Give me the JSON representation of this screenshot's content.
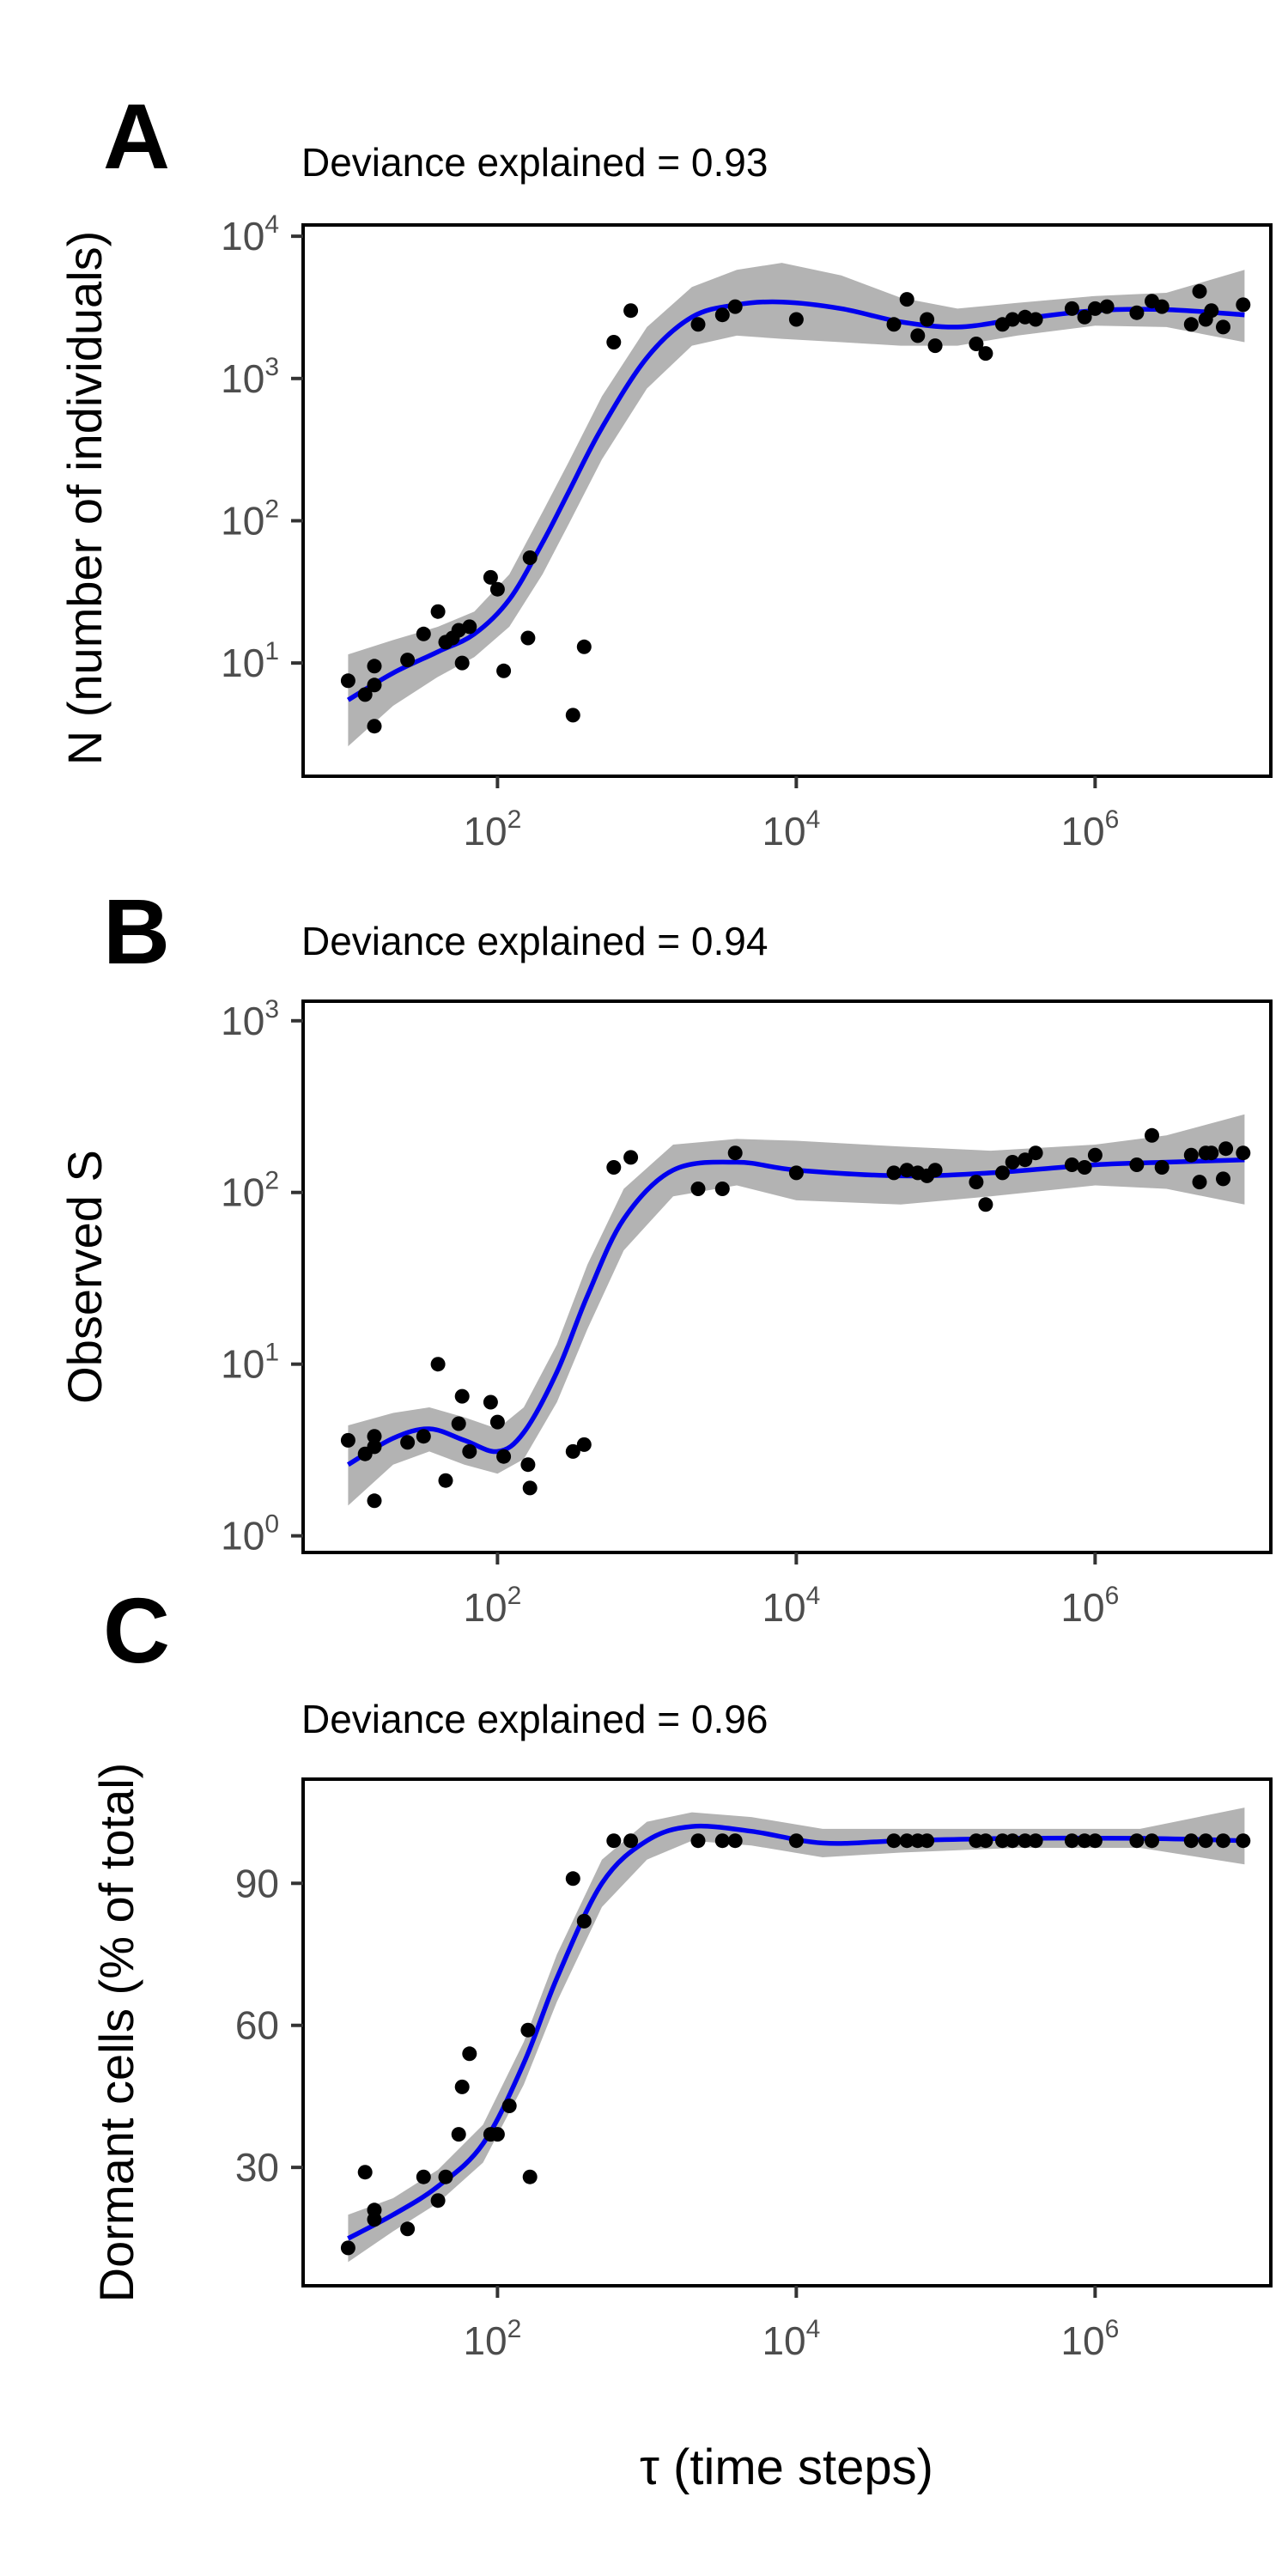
{
  "x_axis_label": "τ (time steps)",
  "chart_data": [
    {
      "type": "scatter",
      "panel": "A",
      "annotation": "Deviance explained = 0.93",
      "ylabel": "N (number of individuals)",
      "xlabel": "τ (time steps)",
      "xscale": "log",
      "yscale": "log",
      "xlim": [
        5,
        15000000
      ],
      "ylim": [
        1.6,
        12000
      ],
      "x_ticks": [
        {
          "value": 100,
          "base": "10",
          "exp": "2"
        },
        {
          "value": 10000,
          "base": "10",
          "exp": "4"
        },
        {
          "value": 1000000,
          "base": "10",
          "exp": "6"
        }
      ],
      "y_ticks": [
        {
          "value": 10,
          "base": "10",
          "exp": "1"
        },
        {
          "value": 100,
          "base": "10",
          "exp": "2"
        },
        {
          "value": 1000,
          "base": "10",
          "exp": "3"
        },
        {
          "value": 10000,
          "base": "10",
          "exp": "4"
        }
      ],
      "fit_color": "#0000ee",
      "band_color": "#b3b3b3",
      "point_color": "#000000",
      "points": [
        {
          "x": 10,
          "y": 7.5
        },
        {
          "x": 13,
          "y": 6
        },
        {
          "x": 15,
          "y": 9.5
        },
        {
          "x": 15,
          "y": 7
        },
        {
          "x": 15,
          "y": 3.6
        },
        {
          "x": 25,
          "y": 10.5
        },
        {
          "x": 32,
          "y": 16
        },
        {
          "x": 40,
          "y": 23
        },
        {
          "x": 45,
          "y": 14
        },
        {
          "x": 50,
          "y": 15
        },
        {
          "x": 55,
          "y": 17
        },
        {
          "x": 58,
          "y": 10
        },
        {
          "x": 65,
          "y": 18
        },
        {
          "x": 90,
          "y": 40
        },
        {
          "x": 100,
          "y": 33
        },
        {
          "x": 110,
          "y": 8.8
        },
        {
          "x": 160,
          "y": 15
        },
        {
          "x": 165,
          "y": 55
        },
        {
          "x": 320,
          "y": 4.3
        },
        {
          "x": 380,
          "y": 13
        },
        {
          "x": 600,
          "y": 1800
        },
        {
          "x": 780,
          "y": 3000
        },
        {
          "x": 2200,
          "y": 2400
        },
        {
          "x": 3200,
          "y": 2800
        },
        {
          "x": 3900,
          "y": 3200
        },
        {
          "x": 10000,
          "y": 2600
        },
        {
          "x": 45000,
          "y": 2400
        },
        {
          "x": 55000,
          "y": 3600
        },
        {
          "x": 65000,
          "y": 2000
        },
        {
          "x": 75000,
          "y": 2600
        },
        {
          "x": 85000,
          "y": 1700
        },
        {
          "x": 160000,
          "y": 1750
        },
        {
          "x": 185000,
          "y": 1500
        },
        {
          "x": 240000,
          "y": 2400
        },
        {
          "x": 280000,
          "y": 2600
        },
        {
          "x": 340000,
          "y": 2700
        },
        {
          "x": 400000,
          "y": 2600
        },
        {
          "x": 700000,
          "y": 3100
        },
        {
          "x": 850000,
          "y": 2700
        },
        {
          "x": 1000000,
          "y": 3100
        },
        {
          "x": 1200000,
          "y": 3200
        },
        {
          "x": 1900000,
          "y": 2900
        },
        {
          "x": 2400000,
          "y": 3500
        },
        {
          "x": 2800000,
          "y": 3200
        },
        {
          "x": 4400000,
          "y": 2400
        },
        {
          "x": 5000000,
          "y": 4100
        },
        {
          "x": 5500000,
          "y": 2600
        },
        {
          "x": 6000000,
          "y": 3000
        },
        {
          "x": 7200000,
          "y": 2300
        },
        {
          "x": 9800000,
          "y": 3300
        }
      ],
      "fit": [
        {
          "x": 10,
          "y": 5.5,
          "lo": 2.6,
          "hi": 11.5
        },
        {
          "x": 20,
          "y": 8.5,
          "lo": 5.0,
          "hi": 14.5
        },
        {
          "x": 40,
          "y": 12,
          "lo": 8.0,
          "hi": 18
        },
        {
          "x": 70,
          "y": 16,
          "lo": 11,
          "hi": 23
        },
        {
          "x": 120,
          "y": 28,
          "lo": 18,
          "hi": 42
        },
        {
          "x": 200,
          "y": 70,
          "lo": 42,
          "hi": 115
        },
        {
          "x": 300,
          "y": 160,
          "lo": 95,
          "hi": 260
        },
        {
          "x": 500,
          "y": 450,
          "lo": 270,
          "hi": 750
        },
        {
          "x": 1000,
          "y": 1400,
          "lo": 850,
          "hi": 2300
        },
        {
          "x": 2000,
          "y": 2700,
          "lo": 1700,
          "hi": 4400
        },
        {
          "x": 4000,
          "y": 3300,
          "lo": 2000,
          "hi": 5800
        },
        {
          "x": 8000,
          "y": 3450,
          "lo": 1900,
          "hi": 6500
        },
        {
          "x": 20000,
          "y": 3100,
          "lo": 1800,
          "hi": 5300
        },
        {
          "x": 50000,
          "y": 2500,
          "lo": 1700,
          "hi": 3700
        },
        {
          "x": 120000,
          "y": 2300,
          "lo": 1700,
          "hi": 3100
        },
        {
          "x": 300000,
          "y": 2600,
          "lo": 2000,
          "hi": 3400
        },
        {
          "x": 1000000,
          "y": 3000,
          "lo": 2350,
          "hi": 3800
        },
        {
          "x": 3000000,
          "y": 3050,
          "lo": 2300,
          "hi": 4000
        },
        {
          "x": 10000000,
          "y": 2800,
          "lo": 1800,
          "hi": 5800
        }
      ]
    },
    {
      "type": "scatter",
      "panel": "B",
      "annotation": "Deviance explained = 0.94",
      "ylabel": "Observed S",
      "xlabel": "τ (time steps)",
      "xscale": "log",
      "yscale": "log",
      "xlim": [
        5,
        15000000
      ],
      "ylim": [
        0.8,
        1300
      ],
      "x_ticks": [
        {
          "value": 100,
          "base": "10",
          "exp": "2"
        },
        {
          "value": 10000,
          "base": "10",
          "exp": "4"
        },
        {
          "value": 1000000,
          "base": "10",
          "exp": "6"
        }
      ],
      "y_ticks": [
        {
          "value": 1,
          "base": "10",
          "exp": "0"
        },
        {
          "value": 10,
          "base": "10",
          "exp": "1"
        },
        {
          "value": 100,
          "base": "10",
          "exp": "2"
        },
        {
          "value": 1000,
          "base": "10",
          "exp": "3"
        }
      ],
      "fit_color": "#0000ee",
      "band_color": "#b3b3b3",
      "point_color": "#000000",
      "points": [
        {
          "x": 10,
          "y": 3.6
        },
        {
          "x": 13,
          "y": 3.0
        },
        {
          "x": 15,
          "y": 3.3
        },
        {
          "x": 15,
          "y": 3.8
        },
        {
          "x": 15,
          "y": 1.6
        },
        {
          "x": 25,
          "y": 3.5
        },
        {
          "x": 32,
          "y": 3.8
        },
        {
          "x": 40,
          "y": 10
        },
        {
          "x": 45,
          "y": 2.1
        },
        {
          "x": 55,
          "y": 4.5
        },
        {
          "x": 58,
          "y": 6.5
        },
        {
          "x": 65,
          "y": 3.1
        },
        {
          "x": 90,
          "y": 6.0
        },
        {
          "x": 100,
          "y": 4.6
        },
        {
          "x": 110,
          "y": 2.9
        },
        {
          "x": 160,
          "y": 2.6
        },
        {
          "x": 165,
          "y": 1.9
        },
        {
          "x": 320,
          "y": 3.1
        },
        {
          "x": 380,
          "y": 3.4
        },
        {
          "x": 600,
          "y": 140
        },
        {
          "x": 780,
          "y": 160
        },
        {
          "x": 2200,
          "y": 105
        },
        {
          "x": 3200,
          "y": 105
        },
        {
          "x": 3900,
          "y": 170
        },
        {
          "x": 10000,
          "y": 130
        },
        {
          "x": 45000,
          "y": 130
        },
        {
          "x": 55000,
          "y": 135
        },
        {
          "x": 65000,
          "y": 130
        },
        {
          "x": 75000,
          "y": 125
        },
        {
          "x": 85000,
          "y": 135
        },
        {
          "x": 160000,
          "y": 115
        },
        {
          "x": 185000,
          "y": 85
        },
        {
          "x": 240000,
          "y": 130
        },
        {
          "x": 280000,
          "y": 150
        },
        {
          "x": 340000,
          "y": 155
        },
        {
          "x": 400000,
          "y": 170
        },
        {
          "x": 700000,
          "y": 145
        },
        {
          "x": 850000,
          "y": 140
        },
        {
          "x": 1000000,
          "y": 165
        },
        {
          "x": 1900000,
          "y": 145
        },
        {
          "x": 2400000,
          "y": 215
        },
        {
          "x": 2800000,
          "y": 140
        },
        {
          "x": 4400000,
          "y": 165
        },
        {
          "x": 5000000,
          "y": 115
        },
        {
          "x": 5500000,
          "y": 170
        },
        {
          "x": 6000000,
          "y": 170
        },
        {
          "x": 7200000,
          "y": 120
        },
        {
          "x": 7500000,
          "y": 180
        },
        {
          "x": 9800000,
          "y": 170
        }
      ],
      "fit": [
        {
          "x": 10,
          "y": 2.6,
          "lo": 1.5,
          "hi": 4.4
        },
        {
          "x": 20,
          "y": 3.7,
          "lo": 2.6,
          "hi": 5.2
        },
        {
          "x": 35,
          "y": 4.2,
          "lo": 3.1,
          "hi": 5.6
        },
        {
          "x": 60,
          "y": 3.6,
          "lo": 2.6,
          "hi": 4.9
        },
        {
          "x": 100,
          "y": 3.1,
          "lo": 2.3,
          "hi": 4.2
        },
        {
          "x": 150,
          "y": 4.0,
          "lo": 2.8,
          "hi": 5.6
        },
        {
          "x": 250,
          "y": 9,
          "lo": 6,
          "hi": 13
        },
        {
          "x": 400,
          "y": 25,
          "lo": 16,
          "hi": 38
        },
        {
          "x": 700,
          "y": 70,
          "lo": 46,
          "hi": 105
        },
        {
          "x": 1500,
          "y": 135,
          "lo": 95,
          "hi": 190
        },
        {
          "x": 4000,
          "y": 150,
          "lo": 110,
          "hi": 205
        },
        {
          "x": 10000,
          "y": 135,
          "lo": 90,
          "hi": 200
        },
        {
          "x": 50000,
          "y": 125,
          "lo": 85,
          "hi": 185
        },
        {
          "x": 200000,
          "y": 130,
          "lo": 95,
          "hi": 175
        },
        {
          "x": 1000000,
          "y": 145,
          "lo": 110,
          "hi": 190
        },
        {
          "x": 3000000,
          "y": 150,
          "lo": 105,
          "hi": 215
        },
        {
          "x": 10000000,
          "y": 155,
          "lo": 85,
          "hi": 285
        }
      ]
    },
    {
      "type": "scatter",
      "panel": "C",
      "annotation": "Deviance explained = 0.96",
      "ylabel": "Dormant cells (% of total)",
      "xlabel": "τ (time steps)",
      "xscale": "log",
      "yscale": "linear",
      "xlim": [
        5,
        15000000
      ],
      "ylim": [
        5,
        112
      ],
      "x_ticks": [
        {
          "value": 100,
          "base": "10",
          "exp": "2"
        },
        {
          "value": 10000,
          "base": "10",
          "exp": "4"
        },
        {
          "value": 1000000,
          "base": "10",
          "exp": "6"
        }
      ],
      "y_ticks": [
        {
          "value": 30,
          "label": "30"
        },
        {
          "value": 60,
          "label": "60"
        },
        {
          "value": 90,
          "label": "90"
        }
      ],
      "fit_color": "#0000ee",
      "band_color": "#b3b3b3",
      "point_color": "#000000",
      "points": [
        {
          "x": 10,
          "y": 13
        },
        {
          "x": 13,
          "y": 29
        },
        {
          "x": 15,
          "y": 21
        },
        {
          "x": 15,
          "y": 19
        },
        {
          "x": 25,
          "y": 17
        },
        {
          "x": 32,
          "y": 28
        },
        {
          "x": 40,
          "y": 23
        },
        {
          "x": 45,
          "y": 28
        },
        {
          "x": 55,
          "y": 37
        },
        {
          "x": 58,
          "y": 47
        },
        {
          "x": 65,
          "y": 54
        },
        {
          "x": 90,
          "y": 37
        },
        {
          "x": 100,
          "y": 37
        },
        {
          "x": 120,
          "y": 43
        },
        {
          "x": 160,
          "y": 59
        },
        {
          "x": 165,
          "y": 28
        },
        {
          "x": 320,
          "y": 91
        },
        {
          "x": 380,
          "y": 82
        },
        {
          "x": 600,
          "y": 99
        },
        {
          "x": 780,
          "y": 99
        },
        {
          "x": 2200,
          "y": 99
        },
        {
          "x": 3200,
          "y": 99
        },
        {
          "x": 3900,
          "y": 99
        },
        {
          "x": 10000,
          "y": 99
        },
        {
          "x": 45000,
          "y": 99
        },
        {
          "x": 55000,
          "y": 99
        },
        {
          "x": 65000,
          "y": 99
        },
        {
          "x": 75000,
          "y": 99
        },
        {
          "x": 160000,
          "y": 99
        },
        {
          "x": 185000,
          "y": 99
        },
        {
          "x": 240000,
          "y": 99
        },
        {
          "x": 280000,
          "y": 99
        },
        {
          "x": 340000,
          "y": 99
        },
        {
          "x": 400000,
          "y": 99
        },
        {
          "x": 700000,
          "y": 99
        },
        {
          "x": 850000,
          "y": 99
        },
        {
          "x": 1000000,
          "y": 99
        },
        {
          "x": 1900000,
          "y": 99
        },
        {
          "x": 2400000,
          "y": 99
        },
        {
          "x": 4400000,
          "y": 99
        },
        {
          "x": 5500000,
          "y": 99
        },
        {
          "x": 7200000,
          "y": 99
        },
        {
          "x": 9800000,
          "y": 99
        }
      ],
      "fit": [
        {
          "x": 10,
          "y": 15,
          "lo": 10,
          "hi": 20
        },
        {
          "x": 20,
          "y": 20,
          "lo": 16.5,
          "hi": 23.5
        },
        {
          "x": 40,
          "y": 26,
          "lo": 22.5,
          "hi": 29.5
        },
        {
          "x": 80,
          "y": 35,
          "lo": 31,
          "hi": 39
        },
        {
          "x": 150,
          "y": 52,
          "lo": 47.5,
          "hi": 56.5
        },
        {
          "x": 250,
          "y": 70,
          "lo": 65,
          "hi": 75
        },
        {
          "x": 500,
          "y": 90,
          "lo": 85,
          "hi": 95
        },
        {
          "x": 1000,
          "y": 99,
          "lo": 95,
          "hi": 103
        },
        {
          "x": 2000,
          "y": 102,
          "lo": 99,
          "hi": 105
        },
        {
          "x": 5000,
          "y": 101,
          "lo": 98,
          "hi": 104
        },
        {
          "x": 15000,
          "y": 98.5,
          "lo": 95.5,
          "hi": 101.5
        },
        {
          "x": 50000,
          "y": 99,
          "lo": 96.5,
          "hi": 101.5
        },
        {
          "x": 300000,
          "y": 99.5,
          "lo": 97.5,
          "hi": 101.5
        },
        {
          "x": 2000000,
          "y": 99.5,
          "lo": 97.5,
          "hi": 101.5
        },
        {
          "x": 10000000,
          "y": 99,
          "lo": 94,
          "hi": 106
        }
      ]
    }
  ]
}
